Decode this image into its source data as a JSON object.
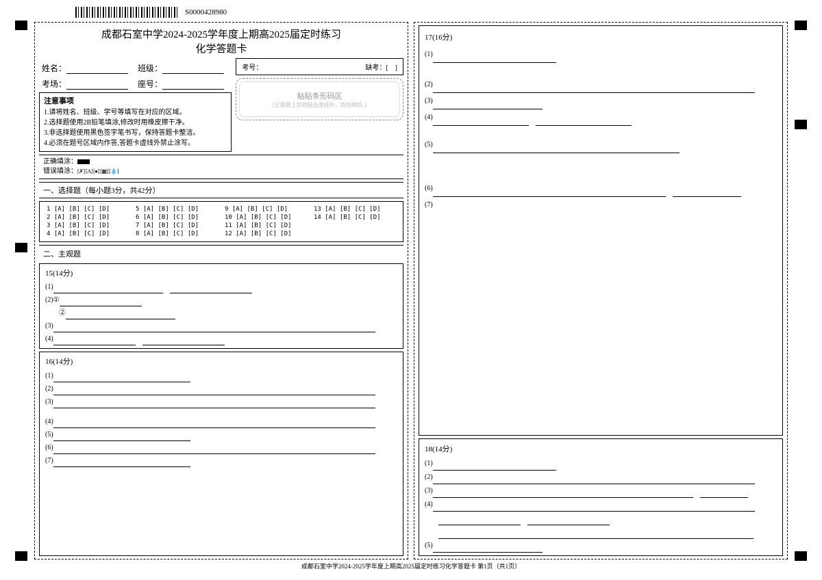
{
  "barcode_number": "S0000428980",
  "title_line1": "成都石室中学2024-2025学年度上期高2025届定时练习",
  "title_line2": "化学答题卡",
  "fields": {
    "name_label": "姓名：",
    "class_label": "班级：",
    "room_label": "考场：",
    "seat_label": "座号："
  },
  "exam_number_label": "考号：",
  "absent_label": "缺考：[　]",
  "barcode_zone_title": "粘贴条形码区",
  "barcode_zone_sub": "（正面朝上切勿贴出虚线外，切勿倾斜。）",
  "notice": {
    "header": "注意事项",
    "items": [
      "1.请将姓名、班级、学号等填写在对应的区域。",
      "2.选择题使用2B铅笔填涂,修改时用橡皮擦干净。",
      "3.非选择题使用黑色签字笔书写，保持答题卡整洁。",
      "4.必须在题号区域内作答,答题卡虚线外禁止涂写。"
    ]
  },
  "fill_guide": {
    "correct": "正确填涂：",
    "wrong": "错误填涂："
  },
  "sections": {
    "mc_header": "一、选择题（每小题3分，共42分）",
    "mc_opts": "[A] [B] [C] [D]",
    "mc": [
      [
        "1",
        "5",
        "9",
        "13"
      ],
      [
        "2",
        "6",
        "10",
        "14"
      ],
      [
        "3",
        "7",
        "11",
        ""
      ],
      [
        "4",
        "8",
        "12",
        ""
      ]
    ],
    "subj_header": "二、主观题",
    "q15": {
      "header": "15(14分)",
      "lines": [
        "(1)",
        "(2)①",
        "　　②",
        "(3)",
        "(4)"
      ]
    },
    "q16": {
      "header": "16(14分)",
      "lines": [
        "(1)",
        "(2)",
        "(3)",
        "(4)",
        "(5)",
        "(6)",
        "(7)"
      ]
    },
    "q17": {
      "header": "17(16分)",
      "lines": [
        "(1)",
        "(2)",
        "(3)",
        "(4)",
        "(5)",
        "(6)",
        "(7)"
      ]
    },
    "q18": {
      "header": "18(14分)",
      "lines": [
        "(1)",
        "(2)",
        "(3)",
        "(4)",
        "(5)"
      ]
    }
  },
  "footer": "成都石室中学2024-2025学年度上期高2025届定时练习化学答题卡  第1页（共1页）"
}
